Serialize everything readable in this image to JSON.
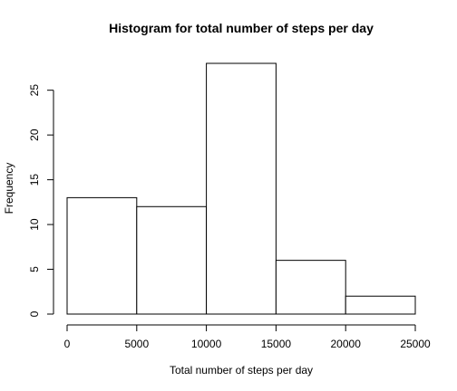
{
  "chart_data": {
    "type": "bar",
    "title": "Histogram for total number of steps per day",
    "xlabel": "Total number of steps per day",
    "ylabel": "Frequency",
    "bins": [
      {
        "from": 0,
        "to": 5000,
        "count": 13
      },
      {
        "from": 5000,
        "to": 10000,
        "count": 12
      },
      {
        "from": 10000,
        "to": 15000,
        "count": 28
      },
      {
        "from": 15000,
        "to": 20000,
        "count": 6
      },
      {
        "from": 20000,
        "to": 25000,
        "count": 2
      }
    ],
    "xlim": [
      0,
      25000
    ],
    "ylim": [
      0,
      28
    ],
    "x_ticks": [
      0,
      5000,
      10000,
      15000,
      20000,
      25000
    ],
    "x_tick_labels": [
      "0",
      "5000",
      "10000",
      "15000",
      "20000",
      "25000"
    ],
    "y_ticks": [
      0,
      5,
      10,
      15,
      20,
      25
    ],
    "y_tick_labels": [
      "0",
      "5",
      "10",
      "15",
      "20",
      "25"
    ],
    "grid": false,
    "legend": "none"
  }
}
